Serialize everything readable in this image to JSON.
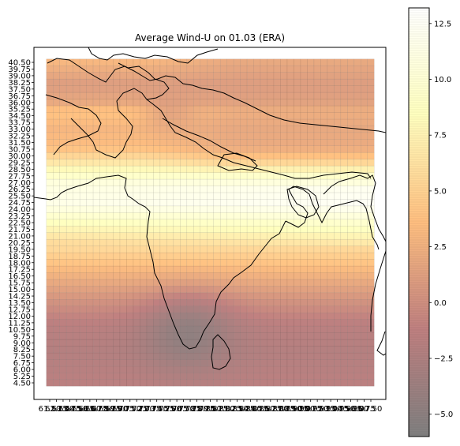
{
  "chart_data": {
    "type": "heatmap",
    "title": "Average Wind-U on 01.03 (ERA)",
    "xlabel": "",
    "ylabel": "",
    "lon_range": [
      61.5,
      97.5
    ],
    "lat_range": [
      4.5,
      40.5
    ],
    "grid_step": 0.75,
    "x_tick_labels": [
      "61.50",
      "62.25",
      "63.00",
      "63.75",
      "64.50",
      "65.25",
      "66.00",
      "66.75",
      "67.50",
      "68.25",
      "69.00",
      "69.75",
      "70.50",
      "71.25",
      "72.00",
      "72.75",
      "73.50",
      "74.25",
      "75.00",
      "75.75",
      "76.50",
      "77.25",
      "78.00",
      "78.75",
      "79.50",
      "80.25",
      "81.00",
      "81.75",
      "82.50",
      "83.25",
      "84.00",
      "84.75",
      "85.50",
      "86.25",
      "87.00",
      "87.75",
      "88.50",
      "89.25",
      "90.00",
      "90.75",
      "91.50",
      "92.25",
      "93.00",
      "93.75",
      "94.50",
      "95.25",
      "96.00",
      "96.75",
      "97.50"
    ],
    "y_tick_labels": [
      "4.50",
      "5.25",
      "6.00",
      "6.75",
      "7.50",
      "8.25",
      "9.00",
      "9.75",
      "10.50",
      "11.25",
      "12.00",
      "12.75",
      "13.50",
      "14.25",
      "15.00",
      "15.75",
      "16.50",
      "17.25",
      "18.00",
      "18.75",
      "19.50",
      "20.25",
      "21.00",
      "21.75",
      "22.50",
      "23.25",
      "24.00",
      "24.75",
      "25.50",
      "26.25",
      "27.00",
      "27.75",
      "28.50",
      "29.25",
      "30.00",
      "30.75",
      "31.50",
      "32.25",
      "33.00",
      "33.75",
      "34.50",
      "35.25",
      "36.00",
      "36.75",
      "37.50",
      "38.25",
      "39.00",
      "39.75",
      "40.50"
    ],
    "colorbar": {
      "colormap": "afmhot",
      "vmin": -6.0,
      "vmax": 13.2,
      "ticks": [
        -5.0,
        -2.5,
        0.0,
        2.5,
        5.0,
        7.5,
        10.0,
        12.5
      ],
      "tick_labels": [
        "−5.0",
        "−2.5",
        "0.0",
        "2.5",
        "5.0",
        "7.5",
        "10.0",
        "12.5"
      ]
    },
    "approx_field_profile": {
      "by_latitude": [
        [
          4.5,
          -1.5
        ],
        [
          8.0,
          -2.0
        ],
        [
          11.0,
          -1.5
        ],
        [
          14.0,
          0.5
        ],
        [
          17.0,
          3.0
        ],
        [
          20.0,
          6.0
        ],
        [
          22.5,
          9.0
        ],
        [
          24.5,
          12.0
        ],
        [
          26.5,
          11.5
        ],
        [
          28.5,
          8.0
        ],
        [
          31.0,
          3.5
        ],
        [
          33.0,
          3.0
        ],
        [
          35.0,
          4.0
        ],
        [
          36.0,
          2.0
        ],
        [
          38.0,
          1.0
        ],
        [
          40.5,
          3.0
        ]
      ],
      "southern_india_minimum": -5.5,
      "northeast_high_plateau_low": 1.0
    }
  }
}
